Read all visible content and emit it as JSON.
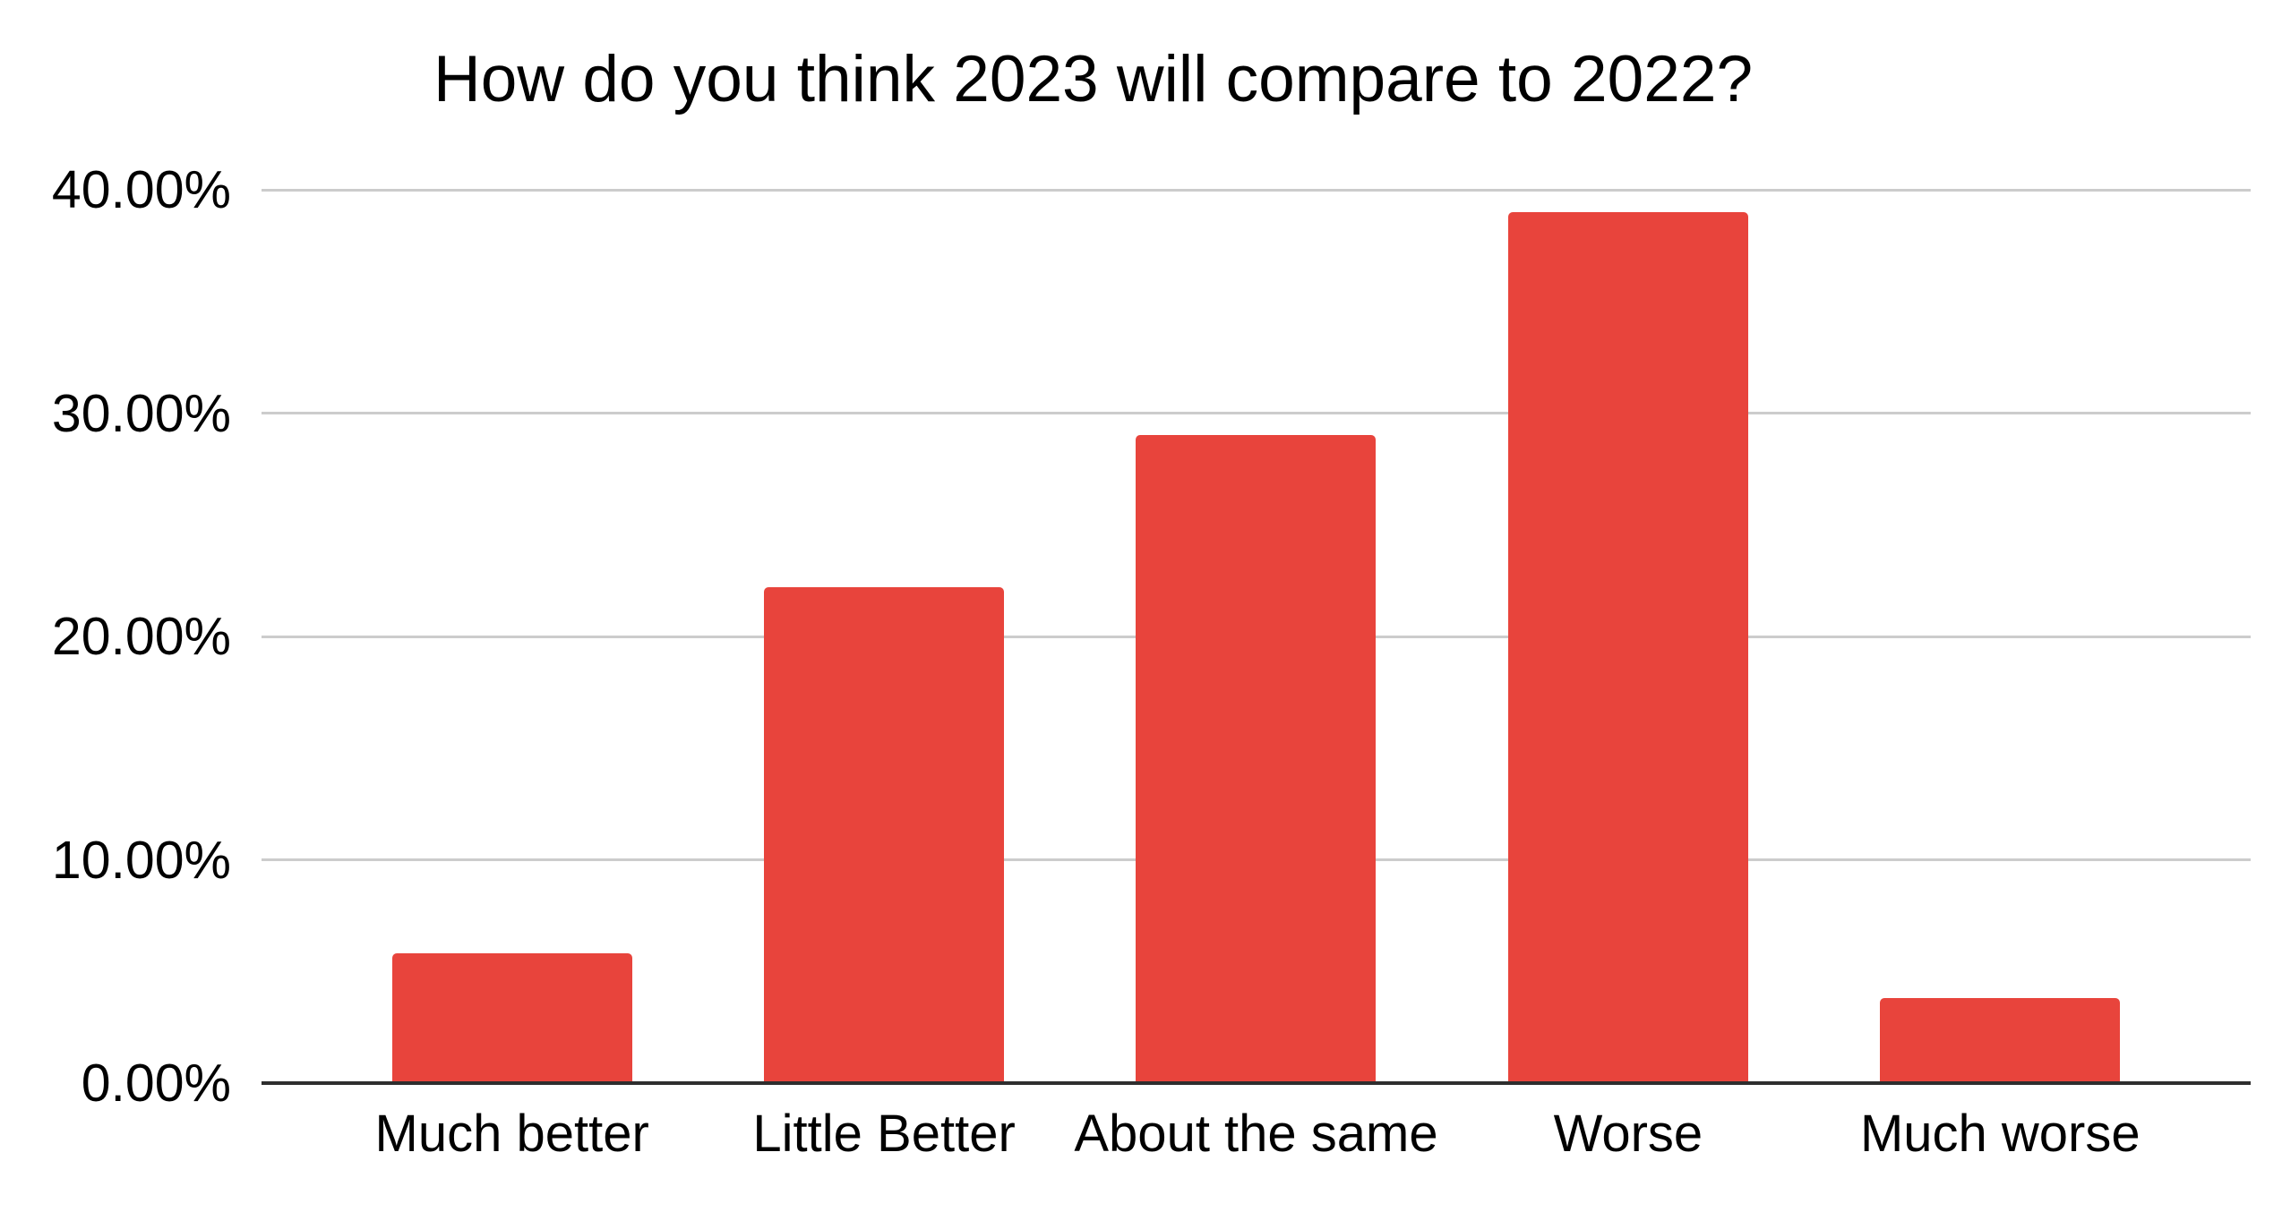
{
  "chart_data": {
    "type": "bar",
    "title": "How do you think 2023 will compare to 2022?",
    "categories": [
      "Much better",
      "Little Better",
      "About the same",
      "Worse",
      "Much worse"
    ],
    "values": [
      5.8,
      22.2,
      29.0,
      39.0,
      3.8
    ],
    "y_tick_labels": [
      "40.00%",
      "30.00%",
      "20.00%",
      "10.00%",
      "0.00%"
    ],
    "ylim": [
      0,
      40
    ],
    "xlabel": "",
    "ylabel": "",
    "legend": "none",
    "grid": "horizontal",
    "colors": {
      "bar": "#e8443c",
      "gridline": "#cccccc",
      "axis_line": "#2e2e2e",
      "text": "#000000",
      "background": "#ffffff"
    }
  }
}
